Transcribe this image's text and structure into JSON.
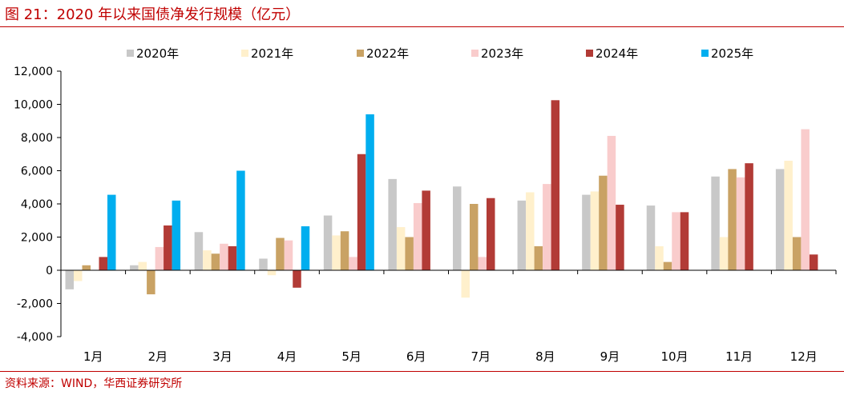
{
  "header": {
    "title": "图 21：2020 年以来国债净发行规模（亿元）"
  },
  "footer": {
    "source": "资料来源：WIND，华西证券研究所"
  },
  "chart_data": {
    "type": "bar",
    "title": "",
    "xlabel": "",
    "ylabel": "",
    "ylim": [
      -4000,
      12000
    ],
    "yticks": [
      12000,
      10000,
      8000,
      6000,
      4000,
      2000,
      0,
      -2000,
      -4000
    ],
    "ytick_labels": [
      "12,000",
      "10,000",
      "8,000",
      "6,000",
      "4,000",
      "2,000",
      "0",
      "-2,000",
      "-4,000"
    ],
    "grid": false,
    "legend_position": "top",
    "categories": [
      "1月",
      "2月",
      "3月",
      "4月",
      "5月",
      "6月",
      "7月",
      "8月",
      "9月",
      "10月",
      "11月",
      "12月"
    ],
    "series": [
      {
        "name": "2020年",
        "color": "#c8c8c8",
        "values": [
          -1150,
          300,
          2300,
          700,
          3300,
          5500,
          5050,
          4200,
          4550,
          3900,
          5650,
          6100
        ]
      },
      {
        "name": "2021年",
        "color": "#fff0cc",
        "values": [
          -650,
          500,
          1200,
          -300,
          2100,
          2600,
          -1650,
          4700,
          4750,
          1450,
          2000,
          6600
        ]
      },
      {
        "name": "2022年",
        "color": "#c9a264",
        "values": [
          300,
          -1450,
          1000,
          1950,
          2350,
          2000,
          4000,
          1450,
          5700,
          500,
          6100,
          2000
        ]
      },
      {
        "name": "2023年",
        "color": "#f9cccc",
        "values": [
          0,
          1400,
          1600,
          1800,
          800,
          4050,
          800,
          5200,
          8100,
          3500,
          5600,
          8500
        ]
      },
      {
        "name": "2024年",
        "color": "#b23b36",
        "values": [
          800,
          2700,
          1450,
          -1050,
          7000,
          4800,
          4350,
          10250,
          3950,
          3500,
          6450,
          950
        ]
      },
      {
        "name": "2025年",
        "color": "#00aeef",
        "values": [
          4550,
          4200,
          6000,
          2650,
          9400,
          null,
          null,
          null,
          null,
          null,
          null,
          null
        ]
      }
    ]
  }
}
